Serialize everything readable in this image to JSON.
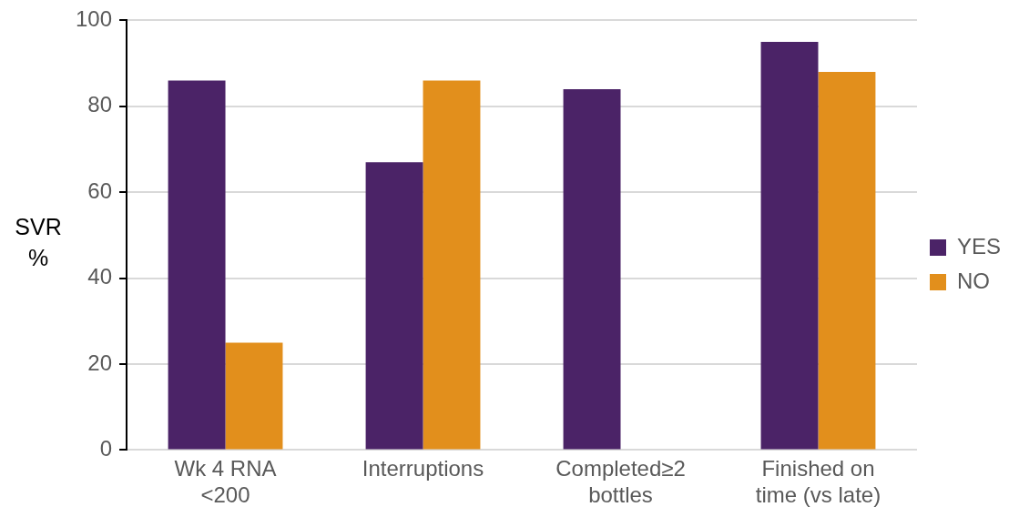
{
  "chart_data": {
    "type": "bar",
    "ylabel": "SVR\n%",
    "categories": [
      "Wk 4 RNA\n<200",
      "Interruptions",
      "Completed≥2\nbottles",
      "Finished on\ntime (vs late)"
    ],
    "series": [
      {
        "name": "YES",
        "color": "#4b2367",
        "values": [
          86,
          67,
          84,
          95
        ]
      },
      {
        "name": "NO",
        "color": "#e28f1c",
        "values": [
          25,
          86,
          null,
          88
        ]
      }
    ],
    "ylim": [
      0,
      100
    ],
    "yticks": [
      0,
      20,
      40,
      60,
      80,
      100
    ],
    "grid": "y",
    "legend": "right"
  }
}
